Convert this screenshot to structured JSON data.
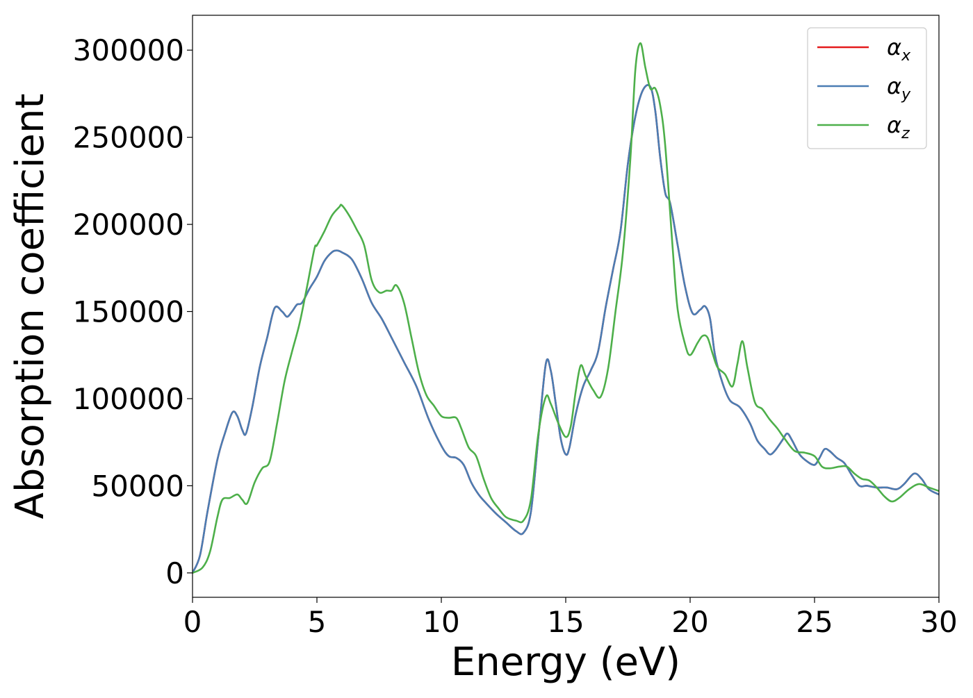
{
  "chart_data": {
    "type": "line",
    "xlabel": "Energy (eV)",
    "ylabel": "Absorption coefficient",
    "xlim": [
      0,
      30
    ],
    "ylim": [
      -14000,
      320000
    ],
    "xticks": [
      0,
      5,
      10,
      15,
      20,
      25,
      30
    ],
    "xtick_labels": [
      "0",
      "5",
      "10",
      "15",
      "20",
      "25",
      "30"
    ],
    "yticks": [
      0,
      50000,
      100000,
      150000,
      200000,
      250000,
      300000
    ],
    "ytick_labels": [
      "0",
      "50000",
      "100000",
      "150000",
      "200000",
      "250000",
      "300000"
    ],
    "grid": false,
    "legend_position": "top-right",
    "series": [
      {
        "name": "α_x",
        "legend_symbol": "α",
        "legend_sub": "x",
        "color": "#e41a1c",
        "x": [
          0,
          0.3,
          0.6,
          1.0,
          1.3,
          1.6,
          1.8,
          2.0,
          2.15,
          2.4,
          2.7,
          3.0,
          3.3,
          3.6,
          3.8,
          4.0,
          4.2,
          4.4,
          4.7,
          5.0,
          5.3,
          5.6,
          5.8,
          6.0,
          6.4,
          6.8,
          7.2,
          7.6,
          8.0,
          8.5,
          9.0,
          9.5,
          10.0,
          10.3,
          10.6,
          10.9,
          11.2,
          11.5,
          11.8,
          12.2,
          12.6,
          13.0,
          13.3,
          13.6,
          13.9,
          14.2,
          14.4,
          14.6,
          14.8,
          15.0,
          15.15,
          15.4,
          15.7,
          16.0,
          16.3,
          16.6,
          16.9,
          17.2,
          17.5,
          17.8,
          18.1,
          18.4,
          18.6,
          18.8,
          19.0,
          19.2,
          19.5,
          19.8,
          20.1,
          20.4,
          20.6,
          20.8,
          21.0,
          21.3,
          21.6,
          22.0,
          22.4,
          22.7,
          23.0,
          23.2,
          23.4,
          23.7,
          23.9,
          24.1,
          24.4,
          24.7,
          25.0,
          25.2,
          25.4,
          25.6,
          25.9,
          26.2,
          26.5,
          26.8,
          27.1,
          27.5,
          27.9,
          28.3,
          28.6,
          29.0,
          29.3,
          29.6,
          30.0
        ],
        "y": [
          0,
          10000,
          35000,
          65000,
          80000,
          92000,
          90000,
          82000,
          80000,
          95000,
          118000,
          135000,
          152000,
          150000,
          147000,
          150000,
          154000,
          155000,
          163000,
          170000,
          179000,
          184000,
          185000,
          184000,
          180000,
          169000,
          155000,
          146000,
          135000,
          121000,
          107000,
          88000,
          73000,
          67000,
          66000,
          62000,
          52000,
          45000,
          40000,
          34000,
          29000,
          24000,
          23000,
          35000,
          78000,
          120000,
          116000,
          97000,
          77000,
          68000,
          72000,
          91000,
          107000,
          116000,
          127000,
          152000,
          174000,
          196000,
          235000,
          262000,
          277000,
          279000,
          265000,
          238000,
          218000,
          212000,
          188000,
          164000,
          149000,
          151000,
          153000,
          146000,
          125000,
          109000,
          99000,
          95000,
          86000,
          76000,
          71000,
          68000,
          70000,
          76000,
          80000,
          76000,
          68000,
          64000,
          62000,
          66000,
          71000,
          70000,
          66000,
          63000,
          56000,
          50000,
          50000,
          49000,
          49000,
          48000,
          51000,
          57000,
          54000,
          48000,
          45000
        ]
      },
      {
        "name": "α_y",
        "legend_symbol": "α",
        "legend_sub": "y",
        "color": "#4a7db3",
        "x": [
          0,
          0.3,
          0.6,
          1.0,
          1.3,
          1.6,
          1.8,
          2.0,
          2.15,
          2.4,
          2.7,
          3.0,
          3.3,
          3.6,
          3.8,
          4.0,
          4.2,
          4.4,
          4.7,
          5.0,
          5.3,
          5.6,
          5.8,
          6.0,
          6.4,
          6.8,
          7.2,
          7.6,
          8.0,
          8.5,
          9.0,
          9.5,
          10.0,
          10.3,
          10.6,
          10.9,
          11.2,
          11.5,
          11.8,
          12.2,
          12.6,
          13.0,
          13.3,
          13.6,
          13.9,
          14.2,
          14.4,
          14.6,
          14.8,
          15.0,
          15.15,
          15.4,
          15.7,
          16.0,
          16.3,
          16.6,
          16.9,
          17.2,
          17.5,
          17.8,
          18.1,
          18.4,
          18.6,
          18.8,
          19.0,
          19.2,
          19.5,
          19.8,
          20.1,
          20.4,
          20.6,
          20.8,
          21.0,
          21.3,
          21.6,
          22.0,
          22.4,
          22.7,
          23.0,
          23.2,
          23.4,
          23.7,
          23.9,
          24.1,
          24.4,
          24.7,
          25.0,
          25.2,
          25.4,
          25.6,
          25.9,
          26.2,
          26.5,
          26.8,
          27.1,
          27.5,
          27.9,
          28.3,
          28.6,
          29.0,
          29.3,
          29.6,
          30.0
        ],
        "y": [
          0,
          10000,
          35000,
          65000,
          80000,
          92000,
          90000,
          82000,
          80000,
          95000,
          118000,
          135000,
          152000,
          150000,
          147000,
          150000,
          154000,
          155000,
          163000,
          170000,
          179000,
          184000,
          185000,
          184000,
          180000,
          169000,
          155000,
          146000,
          135000,
          121000,
          107000,
          88000,
          73000,
          67000,
          66000,
          62000,
          52000,
          45000,
          40000,
          34000,
          29000,
          24000,
          23000,
          35000,
          78000,
          120000,
          116000,
          97000,
          77000,
          68000,
          72000,
          91000,
          107000,
          116000,
          127000,
          152000,
          174000,
          196000,
          235000,
          262000,
          277000,
          279000,
          265000,
          238000,
          218000,
          212000,
          188000,
          164000,
          149000,
          151000,
          153000,
          146000,
          125000,
          109000,
          99000,
          95000,
          86000,
          76000,
          71000,
          68000,
          70000,
          76000,
          80000,
          76000,
          68000,
          64000,
          62000,
          66000,
          71000,
          70000,
          66000,
          63000,
          56000,
          50000,
          50000,
          49000,
          49000,
          48000,
          51000,
          57000,
          54000,
          48000,
          45000
        ]
      },
      {
        "name": "α_z",
        "legend_symbol": "α",
        "legend_sub": "z",
        "color": "#4daf4a",
        "x": [
          0,
          0.4,
          0.7,
          1.0,
          1.2,
          1.5,
          1.8,
          2.0,
          2.2,
          2.5,
          2.8,
          3.1,
          3.4,
          3.7,
          4.0,
          4.3,
          4.6,
          4.9,
          5.0,
          5.3,
          5.6,
          5.9,
          6.0,
          6.3,
          6.6,
          6.9,
          7.2,
          7.5,
          7.8,
          8.0,
          8.2,
          8.5,
          8.8,
          9.1,
          9.4,
          9.7,
          10.0,
          10.3,
          10.6,
          10.8,
          11.1,
          11.4,
          11.7,
          12.0,
          12.3,
          12.6,
          13.0,
          13.3,
          13.6,
          13.9,
          14.2,
          14.4,
          14.7,
          15.0,
          15.2,
          15.4,
          15.6,
          15.8,
          16.1,
          16.4,
          16.7,
          17.0,
          17.3,
          17.6,
          17.8,
          18.0,
          18.2,
          18.4,
          18.6,
          18.8,
          19.0,
          19.3,
          19.5,
          19.8,
          20.0,
          20.3,
          20.5,
          20.7,
          20.9,
          21.1,
          21.4,
          21.7,
          21.9,
          22.1,
          22.3,
          22.6,
          22.9,
          23.2,
          23.5,
          23.8,
          24.2,
          24.6,
          25.0,
          25.3,
          25.6,
          26.0,
          26.3,
          26.6,
          26.9,
          27.2,
          27.5,
          27.8,
          28.1,
          28.4,
          28.8,
          29.2,
          29.6,
          30.0
        ],
        "y": [
          0,
          3000,
          12000,
          32000,
          42000,
          43000,
          45000,
          42000,
          40000,
          52000,
          60000,
          64000,
          86000,
          110000,
          127000,
          143000,
          164000,
          186000,
          188000,
          196000,
          205000,
          210000,
          211000,
          205000,
          197000,
          188000,
          168000,
          161000,
          162000,
          162000,
          165000,
          155000,
          135000,
          115000,
          102000,
          96000,
          90000,
          89000,
          89000,
          83000,
          72000,
          67000,
          54000,
          43000,
          37000,
          32000,
          30000,
          30000,
          42000,
          80000,
          101000,
          97000,
          86000,
          78000,
          84000,
          104000,
          119000,
          113000,
          105000,
          101000,
          117000,
          150000,
          184000,
          238000,
          289000,
          304000,
          290000,
          278000,
          278000,
          268000,
          245000,
          186000,
          151000,
          131000,
          125000,
          132000,
          136000,
          135000,
          126000,
          118000,
          114000,
          107000,
          120000,
          133000,
          118000,
          98000,
          94000,
          88000,
          83000,
          77000,
          70000,
          69000,
          67000,
          61000,
          60000,
          61000,
          61000,
          57000,
          54000,
          53000,
          49000,
          44000,
          41000,
          43000,
          48000,
          51000,
          49000,
          47000
        ]
      }
    ]
  }
}
